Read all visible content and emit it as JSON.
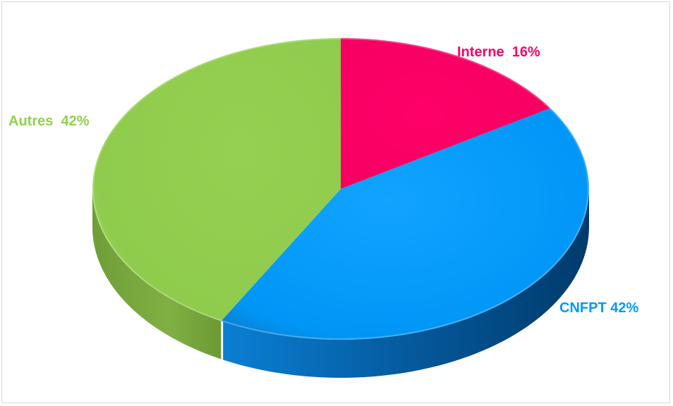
{
  "chart_data": {
    "type": "pie",
    "title": "",
    "slices": [
      {
        "label": "Interne",
        "value": 16,
        "label_text": "Interne  16%",
        "color": "#ff0066"
      },
      {
        "label": "CNFPT",
        "value": 42,
        "label_text": "CNFPT 42%",
        "color": "#0099ff"
      },
      {
        "label": "Autres",
        "value": 42,
        "label_text": "Autres  42%",
        "color": "#92d050"
      }
    ],
    "style": "3d-pie",
    "legend": "none"
  }
}
